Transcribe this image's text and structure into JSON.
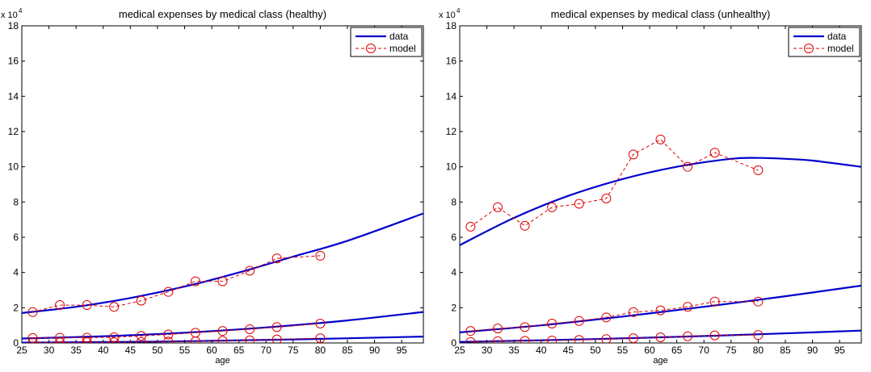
{
  "chart_data": [
    {
      "type": "line",
      "title": "medical expenses by medical class (healthy)",
      "xlabel": "age",
      "ylabel": "",
      "y_scale_label": "x 10",
      "y_scale_exponent": "4",
      "xlim": [
        25,
        99
      ],
      "ylim": [
        0,
        180000
      ],
      "xticks": [
        25,
        30,
        35,
        40,
        45,
        50,
        55,
        60,
        65,
        70,
        75,
        80,
        85,
        90,
        95
      ],
      "yticks": [
        0,
        20000,
        40000,
        60000,
        80000,
        100000,
        120000,
        140000,
        160000,
        180000
      ],
      "ytick_labels": [
        "0",
        "2",
        "4",
        "6",
        "8",
        "10",
        "12",
        "14",
        "16",
        "18"
      ],
      "grid": false,
      "legend": {
        "placement": "top-right",
        "entries": [
          "data",
          "model"
        ]
      },
      "series": [
        {
          "name": "data",
          "style": "solid",
          "color": "#0000cc",
          "x": [
            25,
            35,
            45,
            55,
            65,
            75,
            85,
            99
          ],
          "y": [
            17000,
            20500,
            25500,
            32000,
            40000,
            49000,
            58000,
            73500
          ]
        },
        {
          "name": "data",
          "style": "solid",
          "color": "#0000cc",
          "x": [
            25,
            40,
            55,
            70,
            85,
            99
          ],
          "y": [
            2500,
            3800,
            5800,
            8800,
            12800,
            17600
          ]
        },
        {
          "name": "data",
          "style": "solid",
          "color": "#0000cc",
          "x": [
            25,
            50,
            75,
            99
          ],
          "y": [
            200,
            800,
            2000,
            3600
          ]
        },
        {
          "name": "model",
          "style": "dashed-circle",
          "color": "#dd0000",
          "x": [
            27,
            32,
            37,
            42,
            47,
            52,
            57,
            62,
            67,
            72,
            80
          ],
          "y": [
            17500,
            21500,
            21500,
            20500,
            24000,
            29000,
            35000,
            35000,
            41000,
            48000,
            49500
          ]
        },
        {
          "name": "model",
          "style": "dashed-circle",
          "color": "#dd0000",
          "x": [
            27,
            32,
            37,
            42,
            47,
            52,
            57,
            62,
            67,
            72,
            80
          ],
          "y": [
            2800,
            3000,
            3000,
            3200,
            4000,
            4800,
            5800,
            6800,
            7800,
            9000,
            11000
          ]
        },
        {
          "name": "model",
          "style": "dashed-circle",
          "color": "#dd0000",
          "x": [
            27,
            32,
            37,
            42,
            47,
            52,
            57,
            62,
            67,
            72,
            80
          ],
          "y": [
            300,
            300,
            400,
            400,
            600,
            800,
            900,
            1200,
            1500,
            2000,
            2700
          ]
        }
      ]
    },
    {
      "type": "line",
      "title": "medical expenses by medical class (unhealthy)",
      "xlabel": "age",
      "ylabel": "",
      "y_scale_label": "x 10",
      "y_scale_exponent": "4",
      "xlim": [
        25,
        99
      ],
      "ylim": [
        0,
        180000
      ],
      "xticks": [
        25,
        30,
        35,
        40,
        45,
        50,
        55,
        60,
        65,
        70,
        75,
        80,
        85,
        90,
        95
      ],
      "yticks": [
        0,
        20000,
        40000,
        60000,
        80000,
        100000,
        120000,
        140000,
        160000,
        180000
      ],
      "ytick_labels": [
        "0",
        "2",
        "4",
        "6",
        "8",
        "10",
        "12",
        "14",
        "16",
        "18"
      ],
      "grid": false,
      "legend": {
        "placement": "top-right",
        "entries": [
          "data",
          "model"
        ]
      },
      "series": [
        {
          "name": "data",
          "style": "solid",
          "color": "#0000cc",
          "x": [
            25,
            35,
            45,
            55,
            65,
            75,
            80,
            85,
            90,
            99
          ],
          "y": [
            55500,
            71000,
            83500,
            93000,
            100000,
            104500,
            105000,
            104500,
            103500,
            100000
          ]
        },
        {
          "name": "data",
          "style": "solid",
          "color": "#0000cc",
          "x": [
            25,
            40,
            55,
            70,
            85,
            99
          ],
          "y": [
            6000,
            10000,
            15000,
            20500,
            26500,
            32500
          ]
        },
        {
          "name": "data",
          "style": "solid",
          "color": "#0000cc",
          "x": [
            25,
            50,
            75,
            99
          ],
          "y": [
            600,
            2200,
            4400,
            7000
          ]
        },
        {
          "name": "model",
          "style": "dashed-circle",
          "color": "#dd0000",
          "x": [
            27,
            32,
            37,
            42,
            47,
            52,
            57,
            62,
            67,
            72,
            80
          ],
          "y": [
            66000,
            77000,
            66500,
            77000,
            79000,
            82000,
            107000,
            115500,
            100000,
            108000,
            98000
          ]
        },
        {
          "name": "model",
          "style": "dashed-circle",
          "color": "#dd0000",
          "x": [
            27,
            32,
            37,
            42,
            47,
            52,
            57,
            62,
            67,
            72,
            80
          ],
          "y": [
            6800,
            8200,
            9000,
            11000,
            12500,
            14500,
            17500,
            18500,
            20500,
            23500,
            23500
          ]
        },
        {
          "name": "model",
          "style": "dashed-circle",
          "color": "#dd0000",
          "x": [
            27,
            32,
            37,
            42,
            47,
            52,
            57,
            62,
            67,
            72,
            80
          ],
          "y": [
            600,
            1000,
            1200,
            1400,
            1700,
            2200,
            2700,
            3200,
            3800,
            4300,
            4500
          ]
        }
      ]
    }
  ]
}
